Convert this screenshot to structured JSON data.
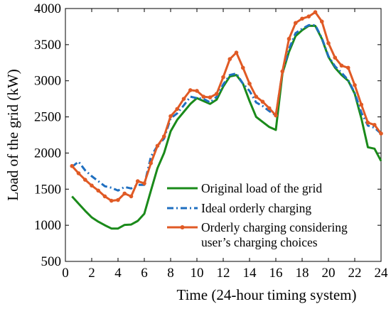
{
  "chart_data": {
    "type": "line",
    "xlabel": "Time (24-hour timing system)",
    "ylabel": "Load of the grid (kW)",
    "xlim": [
      0,
      24
    ],
    "ylim": [
      500,
      4000
    ],
    "xticks": [
      0,
      2,
      4,
      6,
      8,
      10,
      12,
      14,
      16,
      18,
      20,
      22,
      24
    ],
    "yticks": [
      500,
      1000,
      1500,
      2000,
      2500,
      3000,
      3500,
      4000
    ],
    "grid": false,
    "legend_position": "lower-right",
    "series": [
      {
        "name": "Original load of the grid",
        "color": "#1a8a1a",
        "style": "solid",
        "marker": "none",
        "x": [
          0.5,
          1,
          1.5,
          2,
          2.5,
          3,
          3.5,
          4,
          4.5,
          5,
          5.5,
          6,
          6.5,
          7,
          7.5,
          8,
          8.5,
          9,
          9.5,
          10,
          10.5,
          11,
          11.5,
          12,
          12.5,
          13,
          13.5,
          14,
          14.5,
          15,
          15.5,
          16,
          16.5,
          17,
          17.5,
          18,
          18.5,
          19,
          19.5,
          20,
          20.5,
          21,
          21.5,
          22,
          22.5,
          23,
          23.5,
          24
        ],
        "values": [
          1400,
          1300,
          1200,
          1110,
          1050,
          1000,
          955,
          955,
          1005,
          1010,
          1060,
          1160,
          1480,
          1790,
          2000,
          2300,
          2460,
          2570,
          2680,
          2760,
          2720,
          2680,
          2740,
          2920,
          3060,
          3080,
          2960,
          2720,
          2500,
          2430,
          2360,
          2320,
          3100,
          3400,
          3620,
          3700,
          3760,
          3760,
          3580,
          3330,
          3180,
          3080,
          3000,
          2820,
          2480,
          2080,
          2060,
          1890
        ]
      },
      {
        "name": "Ideal orderly charging",
        "color": "#1f6fc0",
        "style": "dash-dot",
        "marker": "none",
        "x": [
          0.5,
          1,
          1.5,
          2,
          2.5,
          3,
          3.5,
          4,
          4.5,
          5,
          5.5,
          6,
          6.5,
          7,
          7.5,
          8,
          8.5,
          9,
          9.5,
          10,
          10.5,
          11,
          11.5,
          12,
          12.5,
          13,
          13.5,
          14,
          14.5,
          15,
          15.5,
          16,
          16.5,
          17,
          17.5,
          18,
          18.5,
          19,
          19.5,
          20,
          20.5,
          21,
          21.5,
          22,
          22.5,
          23,
          23.5,
          24
        ],
        "values": [
          1810,
          1880,
          1760,
          1680,
          1610,
          1540,
          1520,
          1480,
          1530,
          1510,
          1560,
          1560,
          1950,
          2100,
          2200,
          2480,
          2550,
          2660,
          2780,
          2760,
          2750,
          2700,
          2780,
          2950,
          3080,
          3100,
          2960,
          2860,
          2700,
          2650,
          2580,
          2520,
          3120,
          3440,
          3660,
          3720,
          3770,
          3770,
          3590,
          3340,
          3200,
          3110,
          3010,
          2830,
          2560,
          2380,
          2350,
          2270
        ]
      },
      {
        "name": "Orderly charging considering user’s charging choices",
        "color": "#e05a25",
        "style": "solid",
        "marker": "circle",
        "x": [
          0.5,
          1,
          1.5,
          2,
          2.5,
          3,
          3.5,
          4,
          4.5,
          5,
          5.5,
          6,
          6.5,
          7,
          7.5,
          8,
          8.5,
          9,
          9.5,
          10,
          10.5,
          11,
          11.5,
          12,
          12.5,
          13,
          13.5,
          14,
          14.5,
          15,
          15.5,
          16,
          16.5,
          17,
          17.5,
          18,
          18.5,
          19,
          19.5,
          20,
          20.5,
          21,
          21.5,
          22,
          22.5,
          23,
          23.5,
          24
        ],
        "values": [
          1820,
          1720,
          1630,
          1550,
          1480,
          1400,
          1340,
          1350,
          1440,
          1400,
          1610,
          1580,
          1860,
          2100,
          2230,
          2510,
          2610,
          2750,
          2870,
          2860,
          2780,
          2770,
          2820,
          3050,
          3300,
          3390,
          3180,
          2960,
          2780,
          2710,
          2620,
          2520,
          3130,
          3580,
          3800,
          3860,
          3890,
          3950,
          3820,
          3520,
          3320,
          3210,
          3180,
          2940,
          2670,
          2420,
          2390,
          2270
        ]
      }
    ],
    "legend_lines": [
      [
        "Original load of the grid"
      ],
      [
        "Ideal orderly charging"
      ],
      [
        "Orderly charging considering",
        "user’s charging choices"
      ]
    ]
  }
}
